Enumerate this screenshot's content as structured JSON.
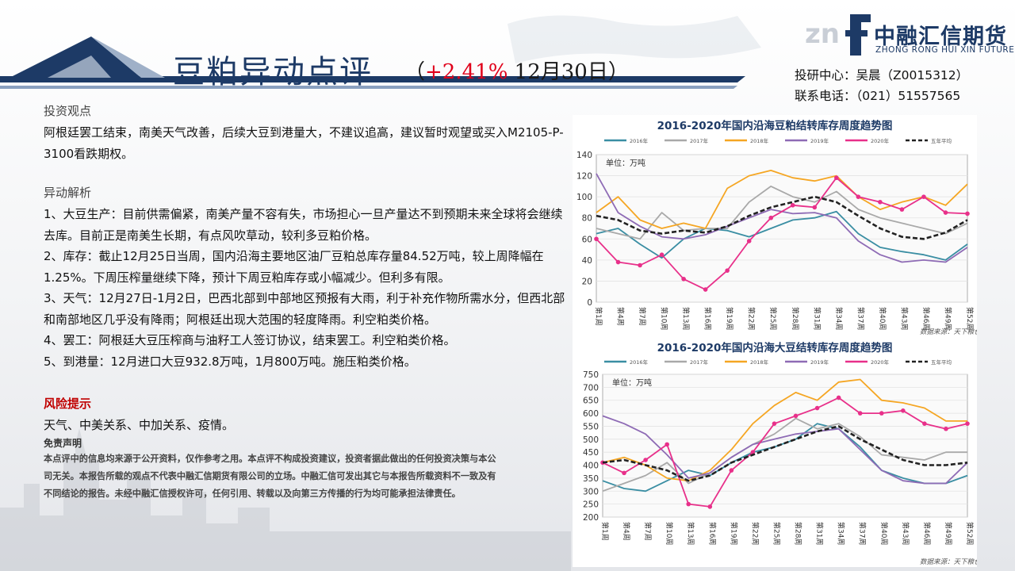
{
  "header": {
    "title": "豆粕异动点评",
    "sub_open": "（",
    "change": "+2.41%",
    "date": " 12月30日）",
    "logo_cn": "中融汇信期货",
    "logo_en": "ZHONG RONG HUI XIN FUTURES",
    "contact_line1": "投研中心：吴晨（Z0015312）",
    "contact_line2": "联系电话：（021）51557565"
  },
  "sections": {
    "view_heading": "投资观点",
    "view_text": "阿根廷罢工结束，南美天气改善，后续大豆到港量大，不建议追高，建议暂时观望或买入M2105-P-3100看跌期权。",
    "analysis_heading": "异动解析",
    "analysis_items": [
      "1、大豆生产：目前供需偏紧，南美产量不容有失，市场担心一旦产量达不到预期未来全球将会继续去库。目前正是南美生长期，有点风吹草动，较利多豆粕价格。",
      "2、库存：截止12月25日当周，国内沿海主要地区油厂豆粕总库存量84.52万吨，较上周降幅在1.25%。下周压榨量继续下降，预计下周豆粕库存或小幅减少。但利多有限。",
      "3、天气：12月27日-1月2日，巴西北部到中部地区预报有大雨，利于补充作物所需水分，但西北部和南部地区几乎没有降雨；阿根廷出现大范围的轻度降雨。利空粕类价格。",
      "4、罢工：阿根廷大豆压榨商与油籽工人签订协议，结束罢工。利空粕类价格。",
      "5、到港量：12月进口大豆932.8万吨，1月800万吨。施压粕类价格。"
    ],
    "risk_heading": "风险提示",
    "risk_text": "天气、中美关系、中加关系、疫情。",
    "disclaimer_heading": "免责声明",
    "disclaimer_text": "本点评中的信息均来源于公开资料，仅作参考之用。本点评不构成投资建议，投资者据此做出的任何投资决策与本公司无关。本报告所载的观点不代表中融汇信期货有限公司的立场。中融汇信可发出其它与本报告所载资料不一致及有不同结论的报告。未经中融汇信授权许可，任何引用、转载以及向第三方传播的行为均可能承担法律责任。"
  },
  "chart_data": [
    {
      "type": "line",
      "title": "2016-2020年国内沿海豆粕结转库存周度趋势图",
      "unit_label": "单位：万吨",
      "ylim": [
        0,
        140
      ],
      "yticks": [
        0,
        20,
        40,
        60,
        80,
        100,
        120,
        140
      ],
      "x": [
        1,
        4,
        7,
        10,
        13,
        16,
        19,
        22,
        25,
        28,
        31,
        34,
        37,
        40,
        43,
        46,
        49,
        52
      ],
      "xtick_labels": [
        "第1周",
        "第4周",
        "第7周",
        "第10周",
        "第13周",
        "第16周",
        "第19周",
        "第22周",
        "第25周",
        "第28周",
        "第31周",
        "第34周",
        "第37周",
        "第40周",
        "第43周",
        "第46周",
        "第49周",
        "第52周"
      ],
      "legend": [
        "2016年",
        "2017年",
        "2018年",
        "2019年",
        "2020年",
        "五年平均"
      ],
      "series": [
        {
          "name": "2016年",
          "color": "#3a8ea3",
          "values": [
            65,
            70,
            55,
            42,
            60,
            70,
            68,
            62,
            70,
            78,
            80,
            86,
            65,
            52,
            48,
            45,
            40,
            55
          ]
        },
        {
          "name": "2017年",
          "color": "#a9a9a9",
          "values": [
            70,
            65,
            60,
            85,
            68,
            70,
            70,
            95,
            110,
            100,
            95,
            105,
            88,
            80,
            75,
            70,
            65,
            75
          ]
        },
        {
          "name": "2018年",
          "color": "#f5a623",
          "values": [
            85,
            100,
            78,
            70,
            75,
            70,
            108,
            120,
            125,
            118,
            115,
            120,
            100,
            88,
            95,
            100,
            92,
            112
          ]
        },
        {
          "name": "2019年",
          "color": "#8e6bb5",
          "values": [
            122,
            85,
            72,
            62,
            60,
            64,
            72,
            80,
            88,
            84,
            85,
            80,
            58,
            45,
            38,
            40,
            38,
            52
          ]
        },
        {
          "name": "2020年",
          "color": "#e8308a",
          "values": [
            60,
            38,
            35,
            45,
            22,
            12,
            30,
            58,
            80,
            92,
            90,
            118,
            100,
            95,
            88,
            100,
            85,
            84
          ]
        },
        {
          "name": "五年平均",
          "color": "#222222",
          "values": [
            82,
            78,
            68,
            65,
            68,
            66,
            72,
            82,
            90,
            95,
            100,
            95,
            82,
            70,
            62,
            60,
            66,
            78
          ]
        }
      ],
      "source": "数据来源：天下粮仓"
    },
    {
      "type": "line",
      "title": "2016-2020年国内沿海大豆结转库存周度趋势图",
      "unit_label": "单位：万吨",
      "ylim": [
        200,
        750
      ],
      "yticks": [
        200,
        250,
        300,
        350,
        400,
        450,
        500,
        550,
        600,
        650,
        700,
        750
      ],
      "x": [
        1,
        4,
        7,
        10,
        13,
        16,
        19,
        22,
        25,
        28,
        31,
        34,
        37,
        40,
        43,
        46,
        49,
        52
      ],
      "xtick_labels": [
        "第1周",
        "第4周",
        "第7周",
        "第10周",
        "第13周",
        "第16周",
        "第19周",
        "第22周",
        "第25周",
        "第28周",
        "第31周",
        "第34周",
        "第37周",
        "第40周",
        "第43周",
        "第46周",
        "第49周",
        "第52周"
      ],
      "legend": [
        "2016年",
        "2017年",
        "2018年",
        "2019年",
        "2020年",
        "五年平均"
      ],
      "series": [
        {
          "name": "2016年",
          "color": "#3a8ea3",
          "values": [
            340,
            310,
            300,
            340,
            380,
            360,
            410,
            450,
            470,
            500,
            560,
            540,
            470,
            380,
            350,
            330,
            330,
            360
          ]
        },
        {
          "name": "2017年",
          "color": "#a9a9a9",
          "values": [
            300,
            330,
            360,
            410,
            330,
            370,
            430,
            480,
            520,
            580,
            540,
            560,
            510,
            440,
            430,
            420,
            450,
            450
          ]
        },
        {
          "name": "2018年",
          "color": "#f5a623",
          "values": [
            410,
            430,
            400,
            350,
            340,
            380,
            460,
            560,
            630,
            680,
            650,
            720,
            730,
            650,
            640,
            620,
            570,
            570
          ]
        },
        {
          "name": "2019年",
          "color": "#8e6bb5",
          "values": [
            590,
            560,
            520,
            440,
            350,
            370,
            430,
            480,
            500,
            520,
            530,
            540,
            460,
            380,
            340,
            330,
            330,
            410
          ]
        },
        {
          "name": "2020年",
          "color": "#e8308a",
          "values": [
            410,
            370,
            420,
            480,
            250,
            240,
            380,
            450,
            560,
            590,
            620,
            660,
            600,
            600,
            610,
            560,
            540,
            560
          ]
        },
        {
          "name": "五年平均",
          "color": "#222222",
          "values": [
            410,
            420,
            400,
            380,
            340,
            360,
            410,
            440,
            470,
            500,
            530,
            550,
            500,
            460,
            420,
            400,
            400,
            410
          ]
        }
      ],
      "source": "数据来源：天下粮仓"
    }
  ]
}
